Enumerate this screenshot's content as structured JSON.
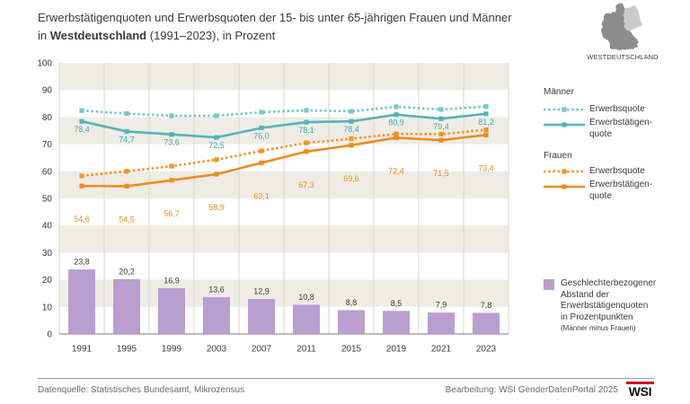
{
  "chart_data": {
    "type": "line",
    "title": {
      "line1": "Erwerbstätigenquoten und Erwerbsquoten der 15- bis unter 65-jährigen Frauen und Männer",
      "line2_prefix": "in ",
      "line2_bold": "Westdeutschland",
      "line2_suffix": " (1991–2023), in Prozent"
    },
    "categories": [
      "1991",
      "1995",
      "1999",
      "2003",
      "2007",
      "2011",
      "2015",
      "2019",
      "2021",
      "2023"
    ],
    "ylim": [
      0,
      100
    ],
    "yticks": [
      0,
      10,
      20,
      30,
      40,
      50,
      60,
      70,
      80,
      90,
      100
    ],
    "grid": true,
    "legend_position": "right",
    "groups": [
      "Männer",
      "Frauen"
    ],
    "series": [
      {
        "group": 0,
        "name": [
          "Erwerbsquote"
        ],
        "type": "line",
        "line_style": "dotted",
        "color": "#74c8cc",
        "values": [
          82.4,
          81.3,
          80.5,
          80.5,
          81.8,
          82.5,
          82.1,
          83.8,
          82.8,
          83.9
        ]
      },
      {
        "group": 0,
        "name": [
          "Erwerbstätigen-",
          "quote"
        ],
        "type": "line",
        "line_style": "solid",
        "color": "#52b4b9",
        "label_color": "#3fa6ab",
        "values": [
          78.4,
          74.7,
          73.6,
          72.5,
          76.0,
          78.1,
          78.4,
          80.9,
          79.4,
          81.2
        ],
        "labels": [
          "78,4",
          "74,7",
          "73,6",
          "72,5",
          "76,0",
          "78,1",
          "78,4",
          "80,9",
          "79,4",
          "81,2"
        ]
      },
      {
        "group": 1,
        "name": [
          "Erwerbsquote"
        ],
        "type": "line",
        "line_style": "dotted",
        "color": "#f39325",
        "values": [
          58.3,
          60.0,
          61.9,
          64.3,
          67.5,
          70.5,
          72.0,
          73.8,
          73.7,
          75.3
        ]
      },
      {
        "group": 1,
        "name": [
          "Erwerbstätigen-",
          "quote"
        ],
        "type": "line",
        "line_style": "solid",
        "color": "#f08a1c",
        "label_color": "#ec8a1e",
        "values": [
          54.6,
          54.5,
          56.7,
          58.9,
          63.1,
          67.3,
          69.6,
          72.4,
          71.5,
          73.4
        ],
        "labels": [
          "54,6",
          "54,5",
          "56,7",
          "58,9",
          "63,1",
          "67,3",
          "69,6",
          "72,4",
          "71,5",
          "73,4"
        ]
      },
      {
        "name": [
          "Geschlechterbezogener",
          "Abstand der",
          "Erwerbstätigenquoten",
          "in Prozentpunkten"
        ],
        "note": "(Männer minus Frauen)",
        "type": "bar",
        "color": "#b99ecf",
        "values": [
          23.8,
          20.2,
          16.9,
          13.6,
          12.9,
          10.8,
          8.8,
          8.5,
          7.9,
          7.8
        ],
        "labels": [
          "23,8",
          "20,2",
          "16,9",
          "13,6",
          "12,9",
          "10,8",
          "8,8",
          "8,5",
          "7,9",
          "7,8"
        ]
      }
    ]
  },
  "map": {
    "label": "WESTDEUTSCHLAND",
    "icon": "germany-map-icon",
    "highlight_color": "#8c8c8c",
    "other_color": "#cbcbcb"
  },
  "footer": {
    "source": "Datenquelle: Statistisches Bundesamt, Mikrozensus",
    "credit": "Bearbeitung: WSI GenderDatenPortal 2025",
    "logo_text": "WSI",
    "logo_accent": "#d3001b"
  }
}
